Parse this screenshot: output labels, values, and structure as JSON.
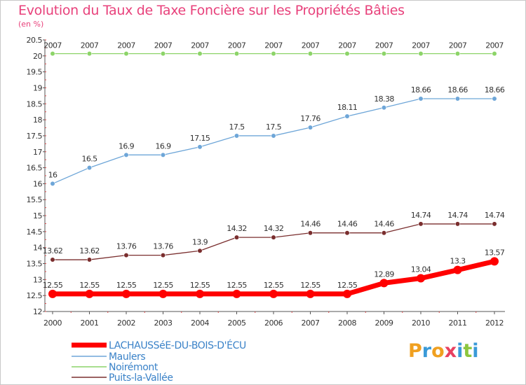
{
  "header": {
    "title": "Evolution du Taux de Taxe Foncière sur les Propriétés Bâties",
    "unit": "(en %)"
  },
  "brand": {
    "letters": [
      "P",
      "r",
      "o",
      "x",
      "i",
      "t",
      "i"
    ],
    "colors": [
      "#f0a020",
      "#3a9ad8",
      "#f0a020",
      "#e84060",
      "#3a9ad8",
      "#8cc63e",
      "#3a9ad8"
    ]
  },
  "chart_data": {
    "type": "line",
    "ylim": [
      12,
      20.5
    ],
    "yticks": [
      "12",
      "12.5",
      "13",
      "13.5",
      "14",
      "14.5",
      "15",
      "15.5",
      "16",
      "16.5",
      "17",
      "17.5",
      "18",
      "18.5",
      "19",
      "19.5",
      "20",
      "20.5"
    ],
    "x": [
      "2000",
      "2001",
      "2002",
      "2003",
      "2004",
      "2005",
      "2006",
      "2007",
      "2008",
      "2009",
      "2010",
      "2011",
      "2012"
    ],
    "grid": false,
    "legend_position": "bottom-left",
    "series": [
      {
        "name": "LACHAUSSéE-DU-BOIS-D'ÉCU",
        "color": "#ff0000",
        "values": [
          12.55,
          12.55,
          12.55,
          12.55,
          12.55,
          12.55,
          12.55,
          12.55,
          12.55,
          12.89,
          13.04,
          13.3,
          13.57
        ],
        "labels": [
          "12.55",
          "12.55",
          "12.55",
          "12.55",
          "12.55",
          "12.55",
          "12.55",
          "12.55",
          "12.55",
          "12.89",
          "13.04",
          "13.3",
          "13.57"
        ]
      },
      {
        "name": "Maulers",
        "color": "#6ea6d8",
        "values": [
          16,
          16.5,
          16.9,
          16.9,
          17.15,
          17.5,
          17.5,
          17.76,
          18.11,
          18.38,
          18.66,
          18.66,
          18.66
        ],
        "labels": [
          "16",
          "16.5",
          "16.9",
          "16.9",
          "17.15",
          "17.5",
          "17.5",
          "17.76",
          "18.11",
          "18.38",
          "18.66",
          "18.66",
          "18.66"
        ]
      },
      {
        "name": "Noirémont",
        "color": "#8cd468",
        "values": [
          20.07,
          20.07,
          20.07,
          20.07,
          20.07,
          20.07,
          20.07,
          20.07,
          20.07,
          20.07,
          20.07,
          20.07,
          20.07
        ],
        "labels": [
          "20.07",
          "20.07",
          "20.07",
          "20.07",
          "20.07",
          "20.07",
          "20.07",
          "20.07",
          "20.07",
          "20.07",
          "20.07",
          "20.07",
          "20.07"
        ]
      },
      {
        "name": "Puits-la-Vallée",
        "color": "#7a2e2e",
        "values": [
          13.62,
          13.62,
          13.76,
          13.76,
          13.9,
          14.32,
          14.32,
          14.46,
          14.46,
          14.46,
          14.74,
          14.74,
          14.74
        ],
        "labels": [
          "13.62",
          "13.62",
          "13.76",
          "13.76",
          "13.9",
          "14.32",
          "14.32",
          "14.46",
          "14.46",
          "14.46",
          "14.74",
          "14.74",
          "14.74"
        ]
      }
    ]
  }
}
